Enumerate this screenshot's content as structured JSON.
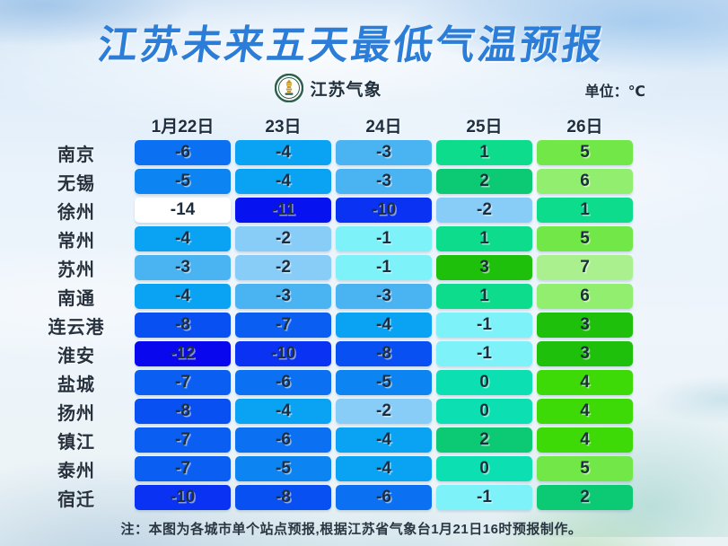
{
  "page": {
    "title": "江苏未来五天最低气温预报",
    "brand_name": "江苏气象",
    "unit_label": "单位：℃",
    "footnote": "注：本图为各城市单个站点预报,根据江苏省气象台1月21日16时预报制作。"
  },
  "chart_data": {
    "type": "table",
    "title": "江苏未来五天最低气温预报",
    "unit": "℃",
    "columns": [
      "1月22日",
      "23日",
      "24日",
      "25日",
      "26日"
    ],
    "rows": [
      {
        "city": "南京",
        "temps": [
          -6,
          -4,
          -3,
          1,
          5
        ]
      },
      {
        "city": "无锡",
        "temps": [
          -5,
          -4,
          -3,
          2,
          6
        ]
      },
      {
        "city": "徐州",
        "temps": [
          -14,
          -11,
          -10,
          -2,
          1
        ]
      },
      {
        "city": "常州",
        "temps": [
          -4,
          -2,
          -1,
          1,
          5
        ]
      },
      {
        "city": "苏州",
        "temps": [
          -3,
          -2,
          -1,
          3,
          7
        ]
      },
      {
        "city": "南通",
        "temps": [
          -4,
          -3,
          -3,
          1,
          6
        ]
      },
      {
        "city": "连云港",
        "temps": [
          -8,
          -7,
          -4,
          -1,
          3
        ]
      },
      {
        "city": "淮安",
        "temps": [
          -12,
          -10,
          -8,
          -1,
          3
        ]
      },
      {
        "city": "盐城",
        "temps": [
          -7,
          -6,
          -5,
          0,
          4
        ]
      },
      {
        "city": "扬州",
        "temps": [
          -8,
          -4,
          -2,
          0,
          4
        ]
      },
      {
        "city": "镇江",
        "temps": [
          -7,
          -6,
          -4,
          2,
          4
        ]
      },
      {
        "city": "泰州",
        "temps": [
          -7,
          -5,
          -4,
          0,
          5
        ]
      },
      {
        "city": "宿迁",
        "temps": [
          -10,
          -8,
          -6,
          -1,
          2
        ]
      }
    ],
    "color_scale": {
      "-14": "#ffffff",
      "-12": "#0807ee",
      "-11": "#0712f0",
      "-10": "#0a32f2",
      "-8": "#0950f2",
      "-7": "#0a5ff2",
      "-6": "#0b70f2",
      "-5": "#0c84f2",
      "-4": "#0aa2f2",
      "-3": "#4ab4f2",
      "-2": "#88ccf8",
      "-1": "#7df2f8",
      "0": "#0ce0b2",
      "1": "#0cdc8c",
      "2": "#0cca74",
      "3": "#1fc00c",
      "4": "#3eda08",
      "5": "#72e748",
      "6": "#92ee6e",
      "7": "#aaf08e"
    },
    "legend_position": "none",
    "grid": false
  },
  "colors": {
    "title_blue": "#2b7dd8",
    "text_dark": "#1d2e3e",
    "emblem_green": "#2d5f4a",
    "emblem_gold": "#c79a2a"
  }
}
